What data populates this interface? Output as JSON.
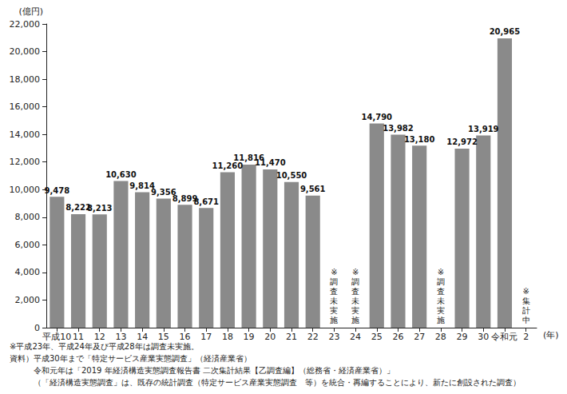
{
  "chart_data": {
    "type": "bar",
    "y_label": "(億円)",
    "x_label": "(年)",
    "categories": [
      "平成10",
      "11",
      "12",
      "13",
      "14",
      "15",
      "16",
      "17",
      "18",
      "19",
      "20",
      "21",
      "22",
      "23",
      "24",
      "25",
      "26",
      "27",
      "28",
      "29",
      "30",
      "令和元",
      "2"
    ],
    "values": [
      9478,
      8222,
      8213,
      10630,
      9814,
      9356,
      8899,
      8671,
      11260,
      11816,
      11470,
      10550,
      9561,
      null,
      null,
      14790,
      13982,
      13180,
      null,
      12972,
      13919,
      20965,
      null
    ],
    "value_labels": [
      "9,478",
      "8,222",
      "8,213",
      "10,630",
      "9,814",
      "9,356",
      "8,899",
      "8,671",
      "11,260",
      "11,816",
      "11,470",
      "10,550",
      "9,561",
      null,
      null,
      "14,790",
      "13,982",
      "13,180",
      null,
      "12,972",
      "13,919",
      "20,965",
      null
    ],
    "color": "#8a8a8a",
    "ylim": [
      0,
      22000
    ],
    "yticks": [
      0,
      {
        "value": 2000,
        "label": "2,000"
      },
      {
        "value": 4000,
        "label": "4,000"
      },
      {
        "value": 6000,
        "label": "6,000"
      },
      {
        "value": 8000,
        "label": "8,000"
      },
      {
        "value": 10000,
        "label": "10,000"
      },
      {
        "value": 12000,
        "label": "12,000"
      },
      {
        "value": 14000,
        "label": "14,000"
      },
      {
        "value": 16000,
        "label": "16,000"
      },
      {
        "value": 18000,
        "label": "18,000"
      },
      {
        "value": 20000,
        "label": "20,000"
      },
      {
        "value": 22000,
        "label": "22,000"
      }
    ],
    "grid": false,
    "data_labels": true,
    "annotations": [
      {
        "category": "23",
        "text": "※調査未実施"
      },
      {
        "category": "24",
        "text": "※調査未実施"
      },
      {
        "category": "28",
        "text": "※調査未実施"
      },
      {
        "category": "2",
        "text": "※集計中"
      }
    ],
    "notes": [
      "※平成23年、平成24年及び平成28年は調査未実施。",
      "資料）平成30年まで「特定サービス産業実態調査」（経済産業省）",
      "令和元年は「2019 年経済構造実態調査報告書 二次集計結果【乙調査編】（総務省・経済産業省）」",
      "（「経済構造実態調査」は、既存の統計調査（特定サービス産業実態調査　等）を統合・再編することにより、新たに創設された調査）"
    ]
  }
}
